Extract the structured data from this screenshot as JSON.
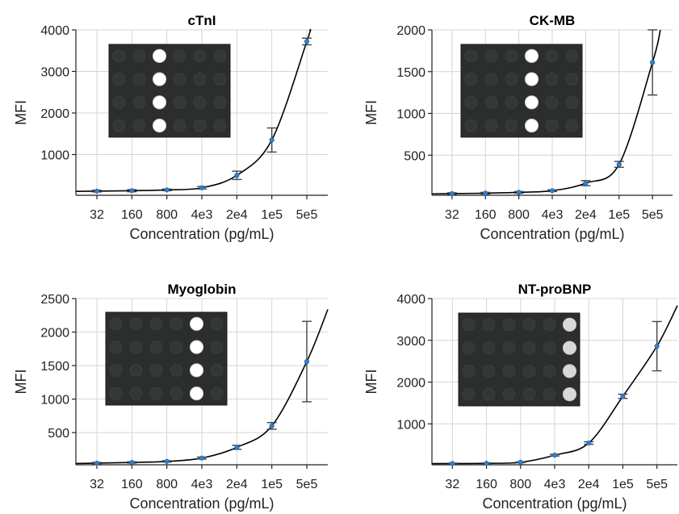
{
  "chart_data": [
    {
      "type": "scatter",
      "title": "cTnI",
      "xlabel": "Concentration (pg/mL)",
      "ylabel": "MFI",
      "categories": [
        "32",
        "160",
        "800",
        "4e3",
        "2e4",
        "1e5",
        "5e5"
      ],
      "x": [
        32,
        160,
        800,
        4000,
        20000,
        100000,
        500000
      ],
      "y_ticks": [
        1000,
        2000,
        3000,
        4000
      ],
      "ylim": [
        20,
        4000
      ],
      "values": [
        120,
        130,
        150,
        200,
        500,
        1350,
        3720
      ],
      "errors": [
        20,
        25,
        20,
        30,
        100,
        290,
        80
      ],
      "fit_line": true,
      "grid": true,
      "inset_bright_column": 2,
      "bright_well_color": "#ffffff"
    },
    {
      "type": "scatter",
      "title": "CK-MB",
      "xlabel": "Concentration (pg/mL)",
      "ylabel": "MFI",
      "categories": [
        "32",
        "160",
        "800",
        "4e3",
        "2e4",
        "1e5",
        "5e5"
      ],
      "x": [
        32,
        160,
        800,
        4000,
        20000,
        100000,
        500000
      ],
      "y_ticks": [
        500,
        1000,
        1500,
        2000
      ],
      "ylim": [
        20,
        2000
      ],
      "values": [
        40,
        45,
        55,
        75,
        165,
        390,
        1610
      ],
      "errors": [
        10,
        10,
        10,
        10,
        30,
        35,
        390
      ],
      "fit_line": true,
      "grid": true,
      "inset_bright_column": 3,
      "bright_well_color": "#ffffff"
    },
    {
      "type": "scatter",
      "title": "Myoglobin",
      "xlabel": "Concentration (pg/mL)",
      "ylabel": "MFI",
      "categories": [
        "32",
        "160",
        "800",
        "4e3",
        "2e4",
        "1e5",
        "5e5"
      ],
      "x": [
        32,
        160,
        800,
        4000,
        20000,
        100000,
        500000
      ],
      "y_ticks": [
        500,
        1000,
        1500,
        2000,
        2500
      ],
      "ylim": [
        20,
        2500
      ],
      "values": [
        45,
        55,
        70,
        120,
        280,
        600,
        1560
      ],
      "errors": [
        10,
        10,
        10,
        15,
        30,
        50,
        600
      ],
      "fit_line": true,
      "grid": true,
      "inset_bright_column": 4,
      "bright_well_color": "#ffffff"
    },
    {
      "type": "scatter",
      "title": "NT-proBNP",
      "xlabel": "Concentration (pg/mL)",
      "ylabel": "MFI",
      "categories": [
        "32",
        "160",
        "800",
        "4e3",
        "2e4",
        "1e5",
        "5e5"
      ],
      "x": [
        32,
        160,
        800,
        4000,
        20000,
        100000,
        500000
      ],
      "y_ticks": [
        1000,
        2000,
        3000,
        4000
      ],
      "ylim": [
        20,
        4000
      ],
      "values": [
        50,
        55,
        80,
        250,
        540,
        1660,
        2860
      ],
      "errors": [
        10,
        10,
        10,
        20,
        30,
        50,
        590
      ],
      "fit_line": true,
      "grid": true,
      "inset_bright_column": 5,
      "bright_well_color": "#d8d8d8"
    }
  ]
}
